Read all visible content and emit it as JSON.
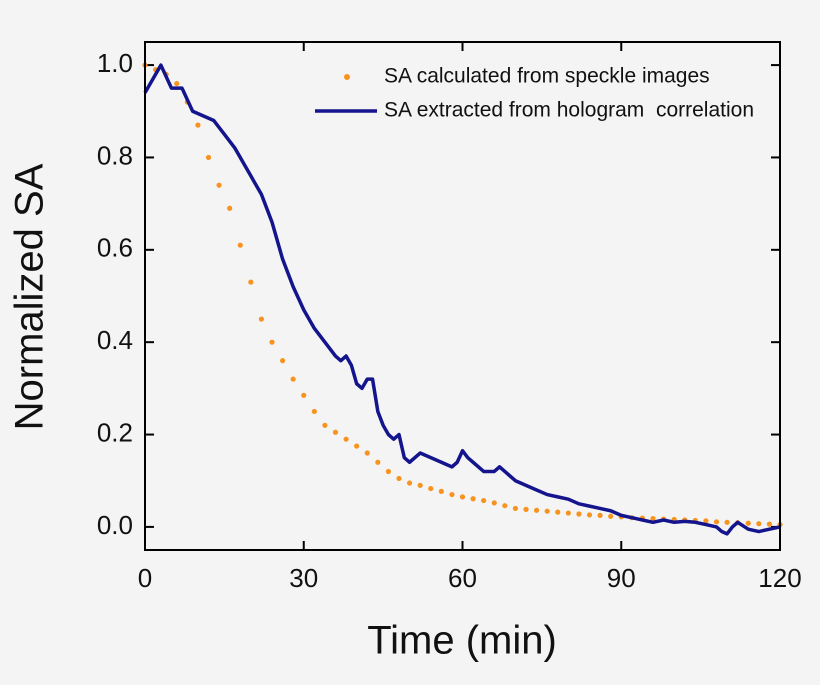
{
  "chart_data": {
    "type": "line",
    "xlabel": "Time (min)",
    "ylabel": "Normalized SA",
    "xlim": [
      0,
      120
    ],
    "xticks": [
      0,
      30,
      60,
      90,
      120
    ],
    "ylim": [
      -0.05,
      1.05
    ],
    "yticks": [
      {
        "value": 0,
        "label": "0.0"
      },
      0.2,
      0.4,
      0.6,
      0.8,
      {
        "value": 1,
        "label": "1.0"
      }
    ],
    "legend": "upper right",
    "series": [
      {
        "name": "SA calculated from speckle images",
        "type": "scatter",
        "color": "#f7931e",
        "x": [
          0,
          2,
          4,
          6,
          8,
          10,
          12,
          14,
          16,
          18,
          20,
          22,
          24,
          26,
          28,
          30,
          32,
          34,
          36,
          38,
          40,
          42,
          44,
          46,
          48,
          50,
          52,
          54,
          56,
          58,
          60,
          62,
          64,
          66,
          68,
          70,
          72,
          74,
          76,
          78,
          80,
          82,
          84,
          86,
          88,
          90,
          92,
          94,
          96,
          98,
          100,
          102,
          104,
          106,
          108,
          110,
          112,
          114,
          116,
          118,
          120
        ],
        "values": [
          1.0,
          0.99,
          0.98,
          0.96,
          0.92,
          0.87,
          0.8,
          0.74,
          0.69,
          0.61,
          0.53,
          0.45,
          0.4,
          0.36,
          0.32,
          0.285,
          0.25,
          0.22,
          0.205,
          0.19,
          0.175,
          0.16,
          0.14,
          0.12,
          0.105,
          0.095,
          0.09,
          0.083,
          0.077,
          0.07,
          0.065,
          0.061,
          0.057,
          0.052,
          0.046,
          0.04,
          0.038,
          0.036,
          0.034,
          0.032,
          0.03,
          0.028,
          0.026,
          0.025,
          0.023,
          0.022,
          0.02,
          0.019,
          0.018,
          0.017,
          0.016,
          0.015,
          0.014,
          0.013,
          0.011,
          0.01,
          0.009,
          0.008,
          0.007,
          0.006,
          0.005
        ]
      },
      {
        "name": "SA extracted from hologram  correlation",
        "type": "line",
        "color": "#14148c",
        "x": [
          0,
          3,
          5,
          7,
          9,
          11,
          13,
          15,
          17,
          20,
          22,
          24,
          26,
          28,
          30,
          32,
          34,
          36,
          37,
          38,
          39,
          40,
          41,
          42,
          43,
          44,
          45,
          46,
          47,
          48,
          49,
          50,
          52,
          54,
          56,
          58,
          59,
          60,
          61,
          62,
          64,
          66,
          67,
          68,
          70,
          72,
          74,
          76,
          78,
          80,
          82,
          84,
          86,
          88,
          90,
          92,
          94,
          96,
          98,
          100,
          102,
          104,
          106,
          108,
          109,
          110,
          111,
          112,
          114,
          116,
          118,
          120
        ],
        "values": [
          0.94,
          1.0,
          0.95,
          0.95,
          0.9,
          0.89,
          0.88,
          0.85,
          0.82,
          0.76,
          0.72,
          0.66,
          0.58,
          0.52,
          0.47,
          0.43,
          0.4,
          0.37,
          0.36,
          0.37,
          0.35,
          0.31,
          0.3,
          0.32,
          0.32,
          0.25,
          0.22,
          0.2,
          0.19,
          0.2,
          0.15,
          0.14,
          0.16,
          0.15,
          0.14,
          0.13,
          0.14,
          0.165,
          0.15,
          0.14,
          0.12,
          0.12,
          0.13,
          0.12,
          0.1,
          0.09,
          0.08,
          0.07,
          0.065,
          0.06,
          0.05,
          0.045,
          0.04,
          0.035,
          0.025,
          0.02,
          0.015,
          0.01,
          0.015,
          0.01,
          0.012,
          0.01,
          0.005,
          0.0,
          -0.01,
          -0.015,
          0.0,
          0.01,
          -0.005,
          -0.01,
          -0.005,
          0.0
        ]
      }
    ]
  }
}
